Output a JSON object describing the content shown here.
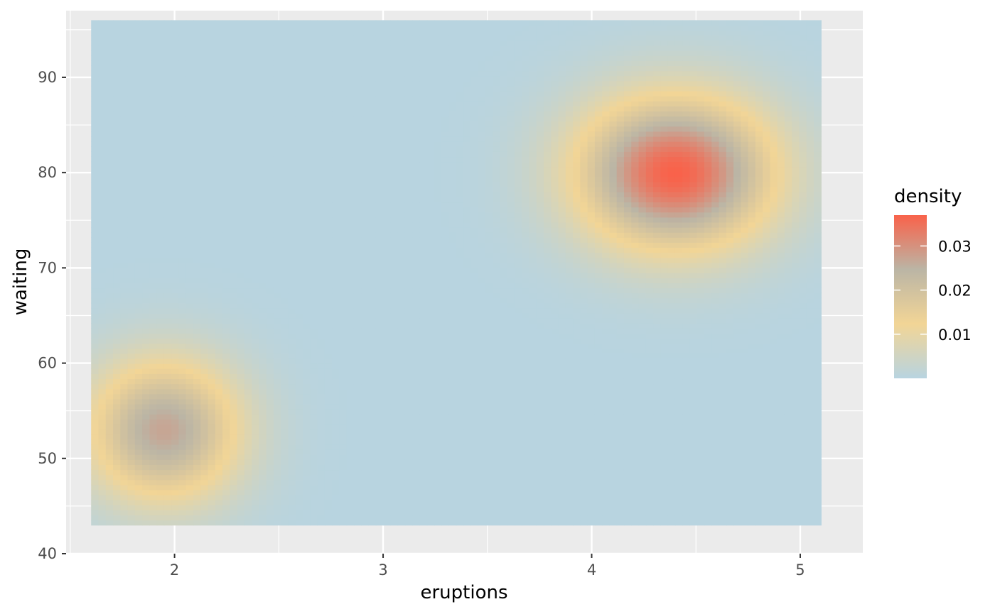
{
  "chart_data": {
    "type": "heatmap",
    "title": "",
    "xlabel": "eruptions",
    "ylabel": "waiting",
    "xlim": [
      1.48,
      5.3
    ],
    "ylim": [
      40,
      97
    ],
    "x_ticks": [
      2,
      3,
      4,
      5
    ],
    "y_ticks": [
      40,
      50,
      60,
      70,
      80,
      90
    ],
    "x_tick_labels": [
      "2",
      "3",
      "4",
      "5"
    ],
    "y_tick_labels": [
      "40",
      "50",
      "60",
      "70",
      "80",
      "90"
    ],
    "tile_x_range": [
      1.6,
      5.1
    ],
    "tile_y_range": [
      43,
      96
    ],
    "grid": true,
    "legend": {
      "title": "density",
      "position": "right",
      "range": [
        0,
        0.037
      ],
      "breaks": [
        0.01,
        0.02,
        0.03
      ],
      "labels": [
        "0.01",
        "0.02",
        "0.03"
      ],
      "colors": [
        "#B8D4E0",
        "#F2D596",
        "#BBB5A5",
        "#F9624A"
      ]
    },
    "density_peaks": [
      {
        "eruptions": 4.4,
        "waiting": 80,
        "density": 0.037
      },
      {
        "eruptions": 1.95,
        "waiting": 53,
        "density": 0.027
      }
    ],
    "colors": {
      "panel_background": "#EBEBEB",
      "grid_major": "#FFFFFF",
      "low": "#B8D4E0",
      "mid": "#F2D596",
      "high": "#F9624A"
    }
  }
}
